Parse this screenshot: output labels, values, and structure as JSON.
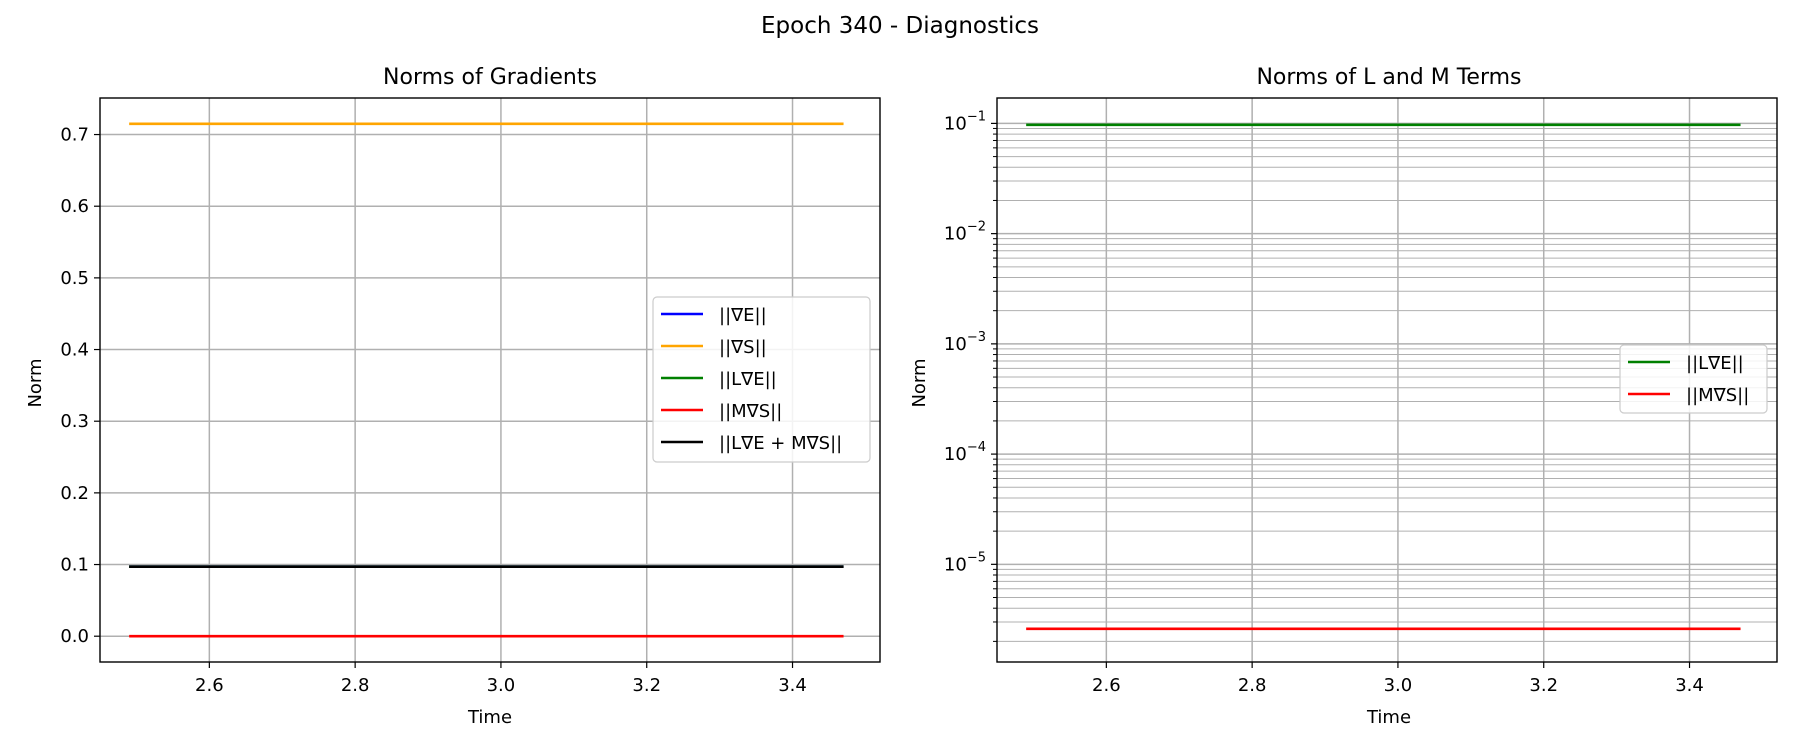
{
  "figure": {
    "suptitle": "Epoch 340 - Diagnostics"
  },
  "chart_data": [
    {
      "type": "line",
      "title": "Norms of Gradients",
      "xlabel": "Time",
      "ylabel": "Norm",
      "xlim": [
        2.45,
        3.52
      ],
      "ylim": [
        -0.036,
        0.751
      ],
      "xticks": [
        2.6,
        2.8,
        3.0,
        3.2,
        3.4
      ],
      "xtick_labels": [
        "2.6",
        "2.8",
        "3.0",
        "3.2",
        "3.4"
      ],
      "yticks": [
        0.0,
        0.1,
        0.2,
        0.3,
        0.4,
        0.5,
        0.6,
        0.7
      ],
      "ytick_labels": [
        "0.0",
        "0.1",
        "0.2",
        "0.3",
        "0.4",
        "0.5",
        "0.6",
        "0.7"
      ],
      "grid": true,
      "legend": "center-right",
      "x": [
        2.49,
        3.47
      ],
      "series": [
        {
          "name": "||∇E||",
          "color": "#0000ff",
          "values": [
            0.097,
            0.097
          ]
        },
        {
          "name": "||∇S||",
          "color": "#ffa500",
          "values": [
            0.715,
            0.715
          ]
        },
        {
          "name": "||L∇E||",
          "color": "#008000",
          "values": [
            0.097,
            0.097
          ]
        },
        {
          "name": "||M∇S||",
          "color": "#ff0000",
          "values": [
            2.6e-06,
            2.6e-06
          ]
        },
        {
          "name": "||L∇E + M∇S||",
          "color": "#000000",
          "values": [
            0.097,
            0.097
          ]
        }
      ]
    },
    {
      "type": "line",
      "title": "Norms of L and M Terms",
      "xlabel": "Time",
      "ylabel": "Norm",
      "yscale": "log",
      "xlim": [
        2.45,
        3.52
      ],
      "ylim": [
        1.3e-06,
        0.17
      ],
      "xticks": [
        2.6,
        2.8,
        3.0,
        3.2,
        3.4
      ],
      "xtick_labels": [
        "2.6",
        "2.8",
        "3.0",
        "3.2",
        "3.4"
      ],
      "yticks": [
        1e-05,
        0.0001,
        0.001,
        0.01,
        0.1
      ],
      "ytick_labels": [
        {
          "base": "10",
          "exp": "−5"
        },
        {
          "base": "10",
          "exp": "−4"
        },
        {
          "base": "10",
          "exp": "−3"
        },
        {
          "base": "10",
          "exp": "−2"
        },
        {
          "base": "10",
          "exp": "−1"
        }
      ],
      "grid": "both",
      "legend": "center-right",
      "x": [
        2.49,
        3.47
      ],
      "series": [
        {
          "name": "||L∇E||",
          "color": "#008000",
          "values": [
            0.097,
            0.097
          ]
        },
        {
          "name": "||M∇S||",
          "color": "#ff0000",
          "values": [
            2.6e-06,
            2.6e-06
          ]
        }
      ]
    }
  ]
}
